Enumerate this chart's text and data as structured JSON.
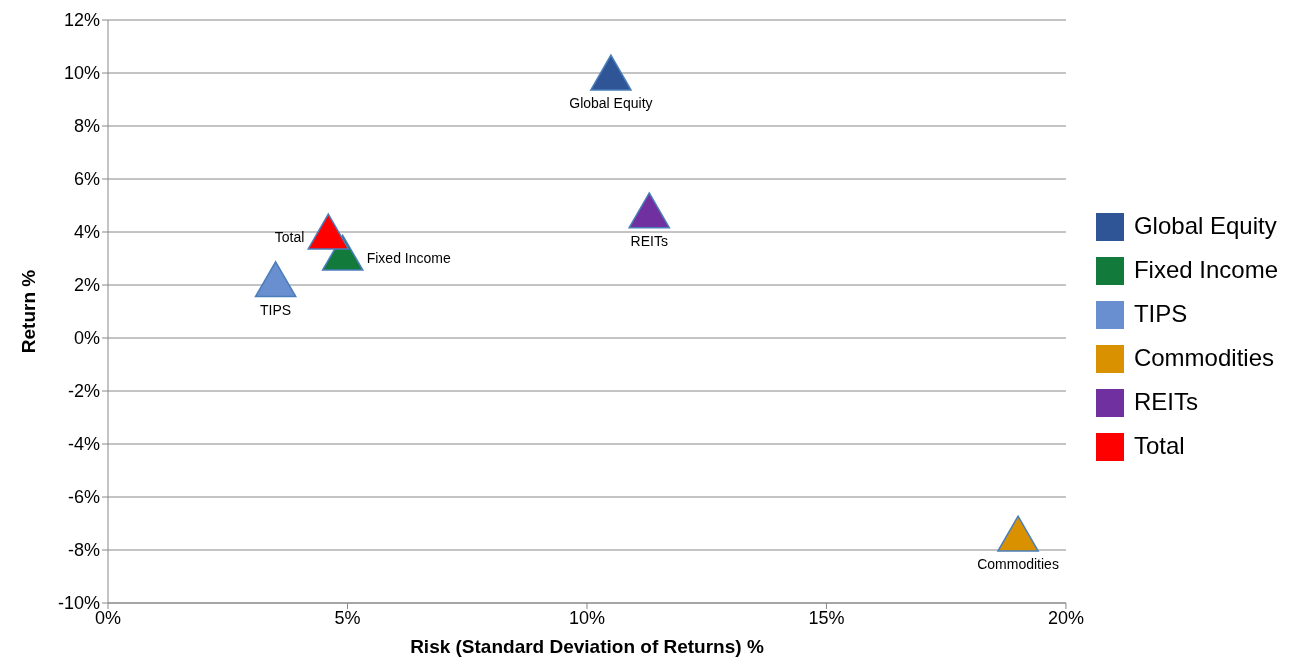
{
  "chart_data": {
    "type": "scatter",
    "xlabel": "Risk  (Standard Deviation of Returns) %",
    "ylabel": "Return %",
    "xlim": [
      0,
      20
    ],
    "xticks": [
      {
        "value": 0,
        "label": "0%"
      },
      {
        "value": 5,
        "label": "5%"
      },
      {
        "value": 10,
        "label": "10%"
      },
      {
        "value": 15,
        "label": "15%"
      },
      {
        "value": 20,
        "label": "20%"
      }
    ],
    "ylim": [
      -10,
      12
    ],
    "yticks": [
      {
        "value": -10,
        "label": "-10%"
      },
      {
        "value": -8,
        "label": "-8%"
      },
      {
        "value": -6,
        "label": "-6%"
      },
      {
        "value": -4,
        "label": "-4%"
      },
      {
        "value": -2,
        "label": "-2%"
      },
      {
        "value": 0,
        "label": "0%"
      },
      {
        "value": 2,
        "label": "2%"
      },
      {
        "value": 4,
        "label": "4%"
      },
      {
        "value": 6,
        "label": "6%"
      },
      {
        "value": 8,
        "label": "8%"
      },
      {
        "value": 10,
        "label": "10%"
      },
      {
        "value": 12,
        "label": "12%"
      }
    ],
    "grid": "y",
    "legend": "right",
    "marker": "triangle",
    "series": [
      {
        "name": "Global Equity",
        "color": "#2f5597",
        "x": [
          10.5
        ],
        "values": [
          9.8
        ]
      },
      {
        "name": "Fixed Income",
        "color": "#127a3a",
        "x": [
          4.9
        ],
        "values": [
          3.0
        ]
      },
      {
        "name": "TIPS",
        "color": "#6a8fd0",
        "x": [
          3.5
        ],
        "values": [
          2.0
        ]
      },
      {
        "name": "Commodities",
        "color": "#d99100",
        "x": [
          19.0
        ],
        "values": [
          -7.6
        ]
      },
      {
        "name": "REITs",
        "color": "#7030a0",
        "x": [
          11.3
        ],
        "values": [
          4.6
        ]
      },
      {
        "name": "Total",
        "color": "#ff0000",
        "x": [
          4.6
        ],
        "values": [
          3.8
        ]
      }
    ]
  }
}
